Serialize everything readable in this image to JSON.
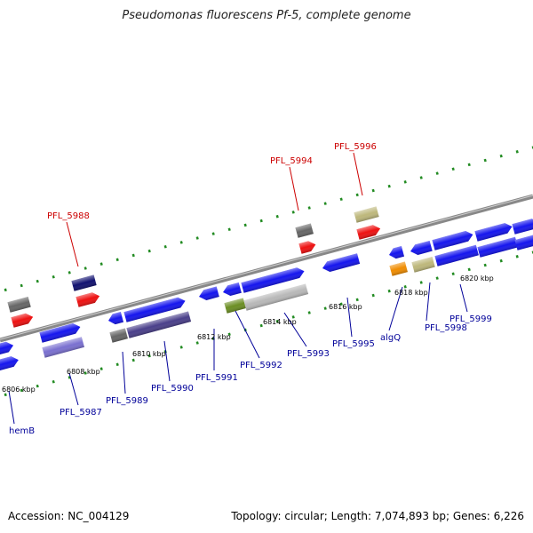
{
  "title": "Pseudomonas fluorescens Pf-5, complete genome",
  "footer": {
    "accession": "Accession: NC_004129",
    "summary": "Topology: circular; Length: 7,074,893 bp; Genes: 6,226"
  },
  "colors": {
    "backbone": "#888888",
    "scale_dots": "#228b22",
    "up_label": "#cc0000",
    "down_label": "#000099",
    "blue": "#1515ee",
    "red": "#ee1111",
    "gray": "#666666",
    "navy": "#111170",
    "lavender": "#7a70d0",
    "darkslate": "#4a3f8a",
    "olive": "#6b8e23",
    "silver": "#b8b8b8",
    "khaki": "#bdb77b",
    "orange": "#f08c00"
  },
  "ticks": [
    {
      "text": "6806 kbp"
    },
    {
      "text": "6808 kbp"
    },
    {
      "text": "6810 kbp"
    },
    {
      "text": "6812 kbp"
    },
    {
      "text": "6814 kbp"
    },
    {
      "text": "6816 kbp"
    },
    {
      "text": "6818 kbp"
    },
    {
      "text": "6820 kbp"
    }
  ],
  "labels": [
    {
      "text": "PFL_5988",
      "strand": "up"
    },
    {
      "text": "PFL_5994",
      "strand": "up"
    },
    {
      "text": "PFL_5996",
      "strand": "up"
    },
    {
      "text": "hemB",
      "strand": "down"
    },
    {
      "text": "PFL_5987",
      "strand": "down"
    },
    {
      "text": "PFL_5989",
      "strand": "down"
    },
    {
      "text": "PFL_5990",
      "strand": "down"
    },
    {
      "text": "PFL_5991",
      "strand": "down"
    },
    {
      "text": "PFL_5992",
      "strand": "down"
    },
    {
      "text": "PFL_5993",
      "strand": "down"
    },
    {
      "text": "PFL_5995",
      "strand": "down"
    },
    {
      "text": "algQ",
      "strand": "down"
    },
    {
      "text": "PFL_5998",
      "strand": "down"
    },
    {
      "text": "PFL_5999",
      "strand": "down"
    }
  ]
}
